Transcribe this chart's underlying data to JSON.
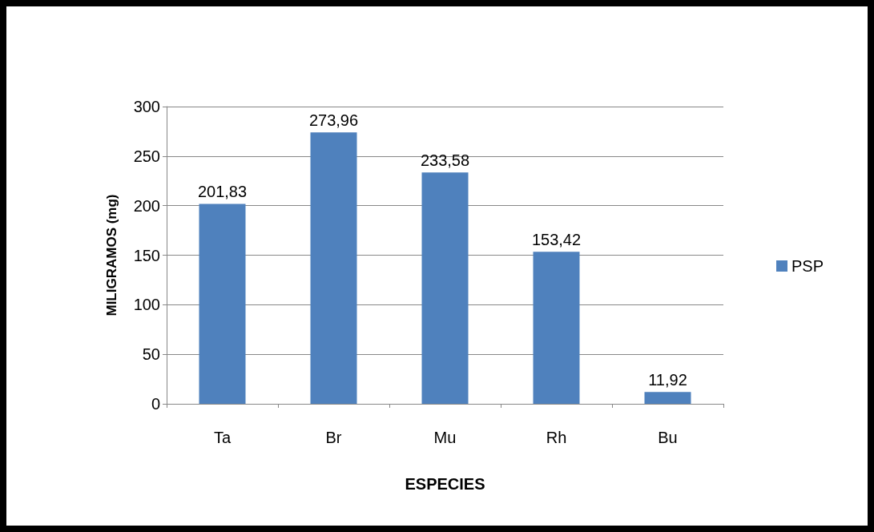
{
  "chart_data": {
    "type": "bar",
    "xlabel": "ESPECIES",
    "ylabel": "MILIGRAMOS (mg)",
    "categories": [
      "Ta",
      "Br",
      "Mu",
      "Rh",
      "Bu"
    ],
    "series": [
      {
        "name": "PSP",
        "color": "#4f81bd",
        "values": [
          201.83,
          273.96,
          233.58,
          153.42,
          11.92
        ],
        "value_labels": [
          "201,83",
          "273,96",
          "233,58",
          "153,42",
          "11,92"
        ]
      }
    ],
    "ylim": [
      0,
      300
    ],
    "yticks": [
      0,
      50,
      100,
      150,
      200,
      250,
      300
    ],
    "grid": "y",
    "legend": "right"
  }
}
